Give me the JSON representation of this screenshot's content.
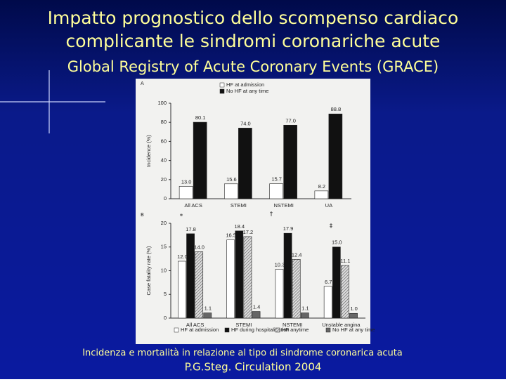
{
  "slide": {
    "title_lines": [
      "Impatto prognostico dello scompenso cardiaco",
      "complicante le sindromi coronariche acute"
    ],
    "subtitle": "Global Registry of Acute Coronary Events (GRACE)",
    "caption": "Incidenza e mortalità in relazione al tipo di sindrome coronarica acuta",
    "citation": "P.G.Steg. Circulation 2004"
  },
  "chart_data": [
    {
      "type": "bar",
      "panel": "A",
      "y_label": "Incidence (%)",
      "categories": [
        "All ACS",
        "STEMI",
        "NSTEMI",
        "UA"
      ],
      "series": [
        {
          "name": "HF at admission",
          "color": "#ffffff",
          "values": [
            13.0,
            15.6,
            15.7,
            8.2
          ],
          "value_labels": [
            "13.0",
            "15.6",
            "15.7",
            "8.2"
          ]
        },
        {
          "name": "No HF at any time",
          "color": "#111111",
          "values": [
            80.1,
            74.0,
            77.0,
            88.8
          ],
          "value_labels": [
            "80.1",
            "74.0",
            "77.0",
            "88.8"
          ]
        }
      ],
      "ylim": [
        0,
        100
      ],
      "yticks": [
        0,
        20,
        40,
        60,
        80,
        100
      ]
    },
    {
      "type": "bar",
      "panel": "B",
      "y_label": "Case fatality rate (%)",
      "categories": [
        "All ACS",
        "STEMI",
        "NSTEMI",
        "Unstable angina"
      ],
      "series": [
        {
          "name": "HF at admission",
          "color": "#ffffff",
          "values": [
            12.0,
            16.5,
            10.3,
            6.7
          ],
          "value_labels": [
            "12.0",
            "16.5",
            "10.3",
            "6.7"
          ]
        },
        {
          "name": "HF during hospitalization",
          "color": "#111111",
          "values": [
            17.8,
            18.4,
            17.9,
            15.0
          ],
          "value_labels": [
            "17.8",
            "18.4",
            "17.9",
            "15.0"
          ]
        },
        {
          "name": "HF anytime",
          "color": "#bbbbbb",
          "hatch": true,
          "values": [
            14.0,
            17.2,
            12.4,
            11.1
          ],
          "value_labels": [
            "14.0",
            "17.2",
            "12.4",
            "11.1"
          ]
        },
        {
          "name": "No HF at any time",
          "color": "#666666",
          "values": [
            1.1,
            1.4,
            1.1,
            1.0
          ],
          "value_labels": [
            "1.1",
            "1.4",
            "1.1",
            "1.0"
          ]
        }
      ],
      "annotations": [
        "*",
        "†",
        "‡"
      ],
      "ylim": [
        0,
        20
      ],
      "yticks": [
        0,
        5,
        10,
        15,
        20
      ]
    }
  ]
}
